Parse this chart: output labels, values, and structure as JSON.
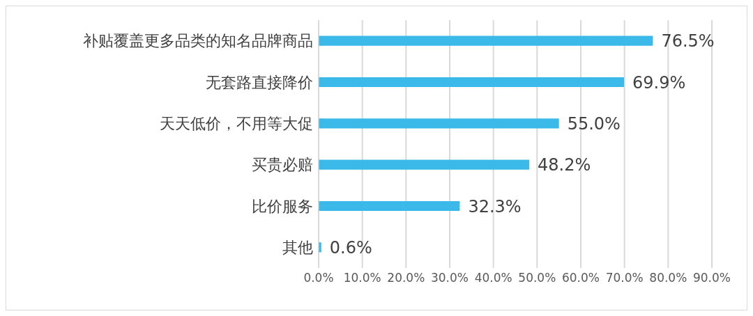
{
  "chart_data": {
    "type": "bar",
    "orientation": "horizontal",
    "categories": [
      "补贴覆盖更多品类的知名品牌商品",
      "无套路直接降价",
      "天天低价，不用等大促",
      "买贵必赔",
      "比价服务",
      "其他"
    ],
    "values": [
      76.5,
      69.9,
      55.0,
      48.2,
      32.3,
      0.6
    ],
    "value_labels": [
      "76.5%",
      "69.9%",
      "55.0%",
      "48.2%",
      "32.3%",
      "0.6%"
    ],
    "color": "#3bb9e8",
    "xlim": [
      0,
      90
    ],
    "xticks": [
      {
        "value": 0,
        "label": "0.0%"
      },
      {
        "value": 10,
        "label": "10.0%"
      },
      {
        "value": 20,
        "label": "20.0%"
      },
      {
        "value": 30,
        "label": "30.0%"
      },
      {
        "value": 40,
        "label": "40.0%"
      },
      {
        "value": 50,
        "label": "50.0%"
      },
      {
        "value": 60,
        "label": "60.0%"
      },
      {
        "value": 70,
        "label": "70.0%"
      },
      {
        "value": 80,
        "label": "80.0%"
      },
      {
        "value": 90,
        "label": "90.0%"
      }
    ],
    "grid": "x"
  }
}
